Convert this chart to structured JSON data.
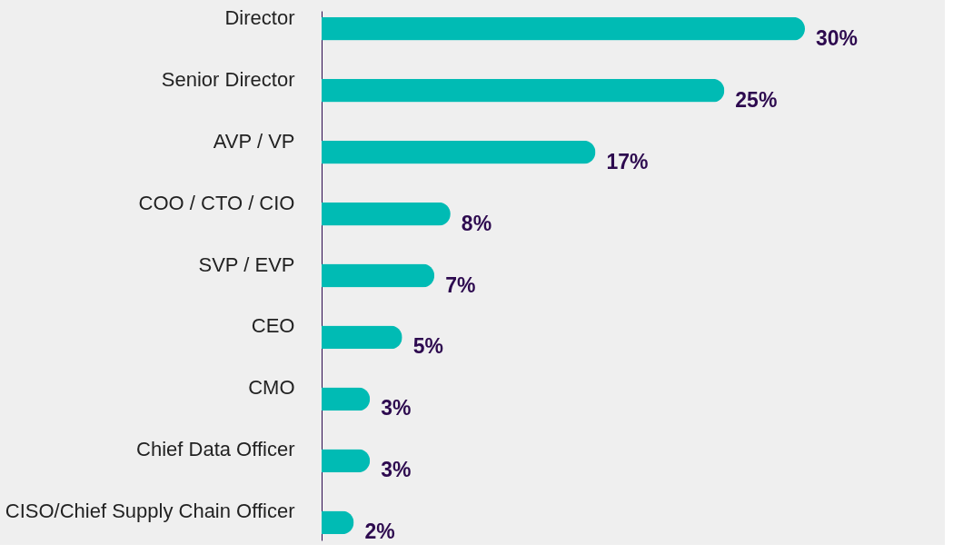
{
  "chart_data": {
    "type": "bar",
    "orientation": "horizontal",
    "categories": [
      "Director",
      "Senior Director",
      "AVP / VP",
      "COO / CTO / CIO",
      "SVP / EVP",
      "CEO",
      "CMO",
      "Chief Data Officer",
      "CISO/Chief Supply Chain Officer"
    ],
    "values": [
      30,
      25,
      17,
      8,
      7,
      5,
      3,
      3,
      2
    ],
    "value_labels": [
      "30%",
      "25%",
      "17%",
      "8%",
      "7%",
      "5%",
      "3%",
      "3%",
      "2%"
    ],
    "color": "#00bbb4"
  }
}
